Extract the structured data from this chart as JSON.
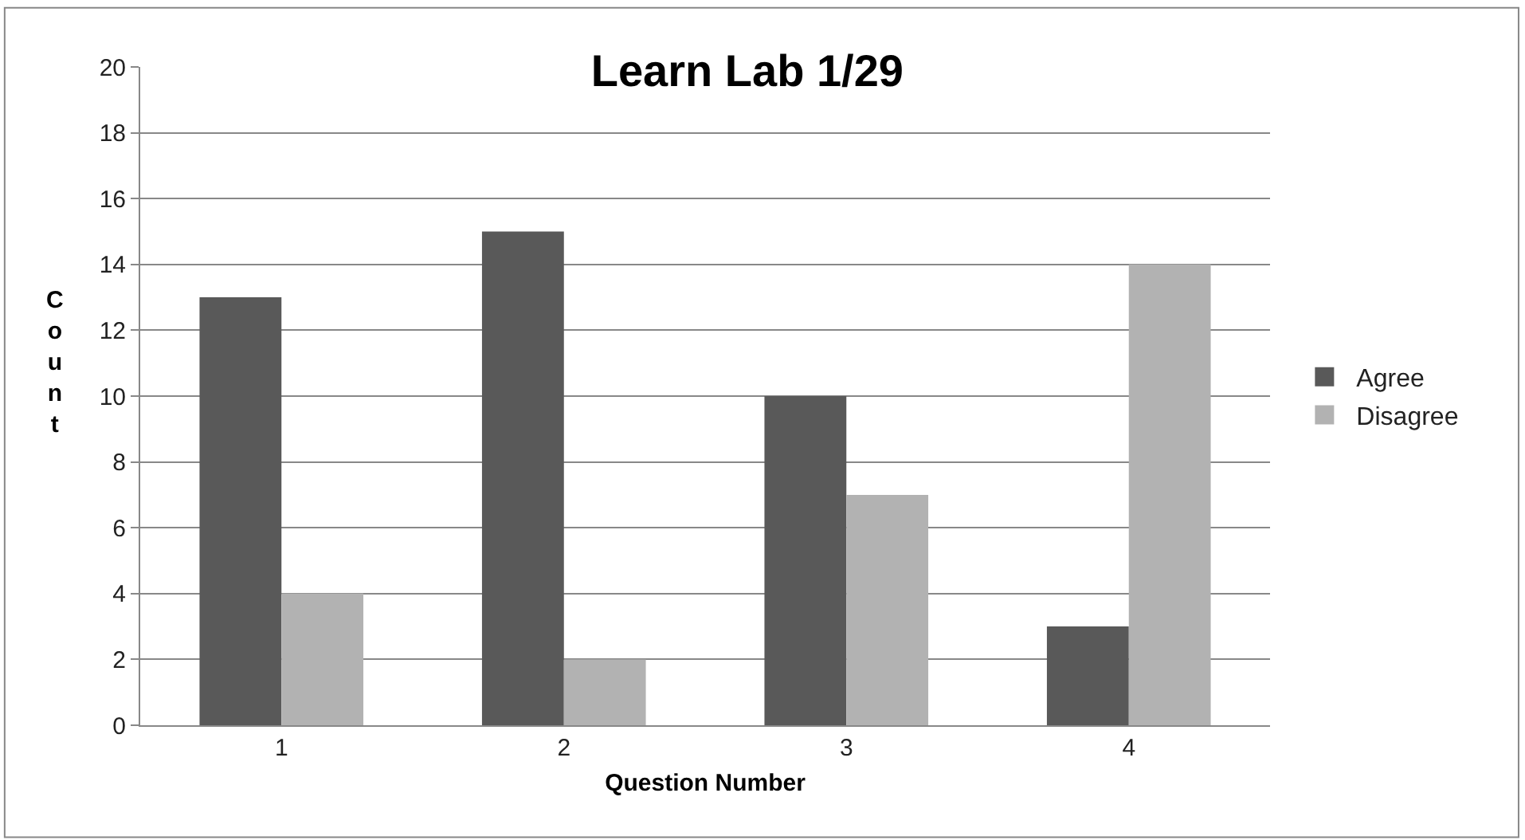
{
  "chart_data": {
    "type": "bar",
    "title": "Learn Lab 1/29",
    "xlabel": "Question Number",
    "ylabel": "Count",
    "categories": [
      "1",
      "2",
      "3",
      "4"
    ],
    "series": [
      {
        "name": "Agree",
        "color": "#595959",
        "values": [
          13,
          15,
          10,
          3
        ]
      },
      {
        "name": "Disagree",
        "color": "#b2b2b2",
        "values": [
          4,
          2,
          7,
          14
        ]
      }
    ],
    "ylim": [
      0,
      20
    ],
    "yticks": [
      0,
      2,
      4,
      6,
      8,
      10,
      12,
      14,
      16,
      18,
      20
    ],
    "grid": "y",
    "legend": "right"
  }
}
